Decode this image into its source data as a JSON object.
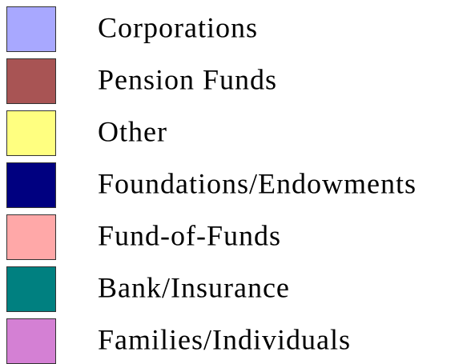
{
  "legend": {
    "items": [
      {
        "label": "Corporations",
        "color": "#a8a8ff"
      },
      {
        "label": "Pension Funds",
        "color": "#a85454"
      },
      {
        "label": "Other",
        "color": "#ffff80"
      },
      {
        "label": "Foundations/Endowments",
        "color": "#000080"
      },
      {
        "label": "Fund-of-Funds",
        "color": "#ffa8a8"
      },
      {
        "label": "Bank/Insurance",
        "color": "#008080"
      },
      {
        "label": "Families/Individuals",
        "color": "#d480d4"
      }
    ]
  }
}
